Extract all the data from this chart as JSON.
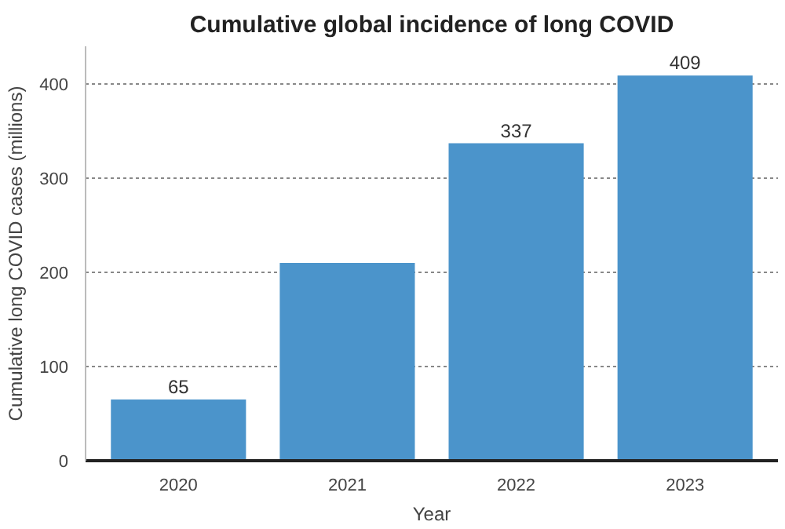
{
  "chart_data": {
    "type": "bar",
    "title": "Cumulative global incidence of long COVID",
    "xlabel": "Year",
    "ylabel": "Cumulative long COVID cases (millions)",
    "categories": [
      "2020",
      "2021",
      "2022",
      "2023"
    ],
    "values": [
      65,
      210,
      337,
      409
    ],
    "value_labels": [
      "65",
      null,
      "337",
      "409"
    ],
    "color": "#4b94cb",
    "ylim": [
      0,
      440
    ],
    "yticks": [
      0,
      100,
      200,
      300,
      400
    ],
    "grid": "y"
  }
}
